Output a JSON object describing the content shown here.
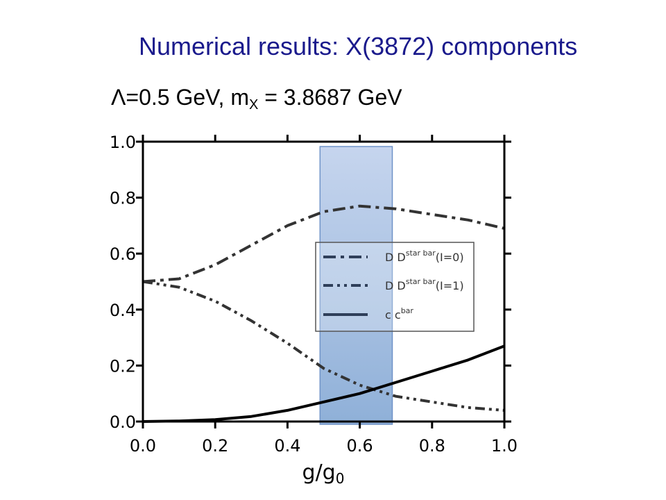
{
  "title": "Numerical results: X(3872) components",
  "subtitle": {
    "prefix": "Λ=0.5 GeV,  m",
    "sub": "X",
    "suffix": " = 3.8687 GeV"
  },
  "chart_data": {
    "type": "line",
    "xlabel": "g/g",
    "xlabel_sub": "0",
    "ylabel": "",
    "xlim": [
      0.0,
      1.0
    ],
    "ylim": [
      0.0,
      1.0
    ],
    "xticks": [
      "0.0",
      "0.2",
      "0.4",
      "0.6",
      "0.8",
      "1.0"
    ],
    "yticks": [
      "0.0",
      "0.2",
      "0.4",
      "0.6",
      "0.8",
      "1.0"
    ],
    "grid": false,
    "legend_position": "center-right",
    "highlight_band": {
      "x_range": [
        0.49,
        0.69
      ],
      "color": "#7fa6d6"
    },
    "series": [
      {
        "name": "D D",
        "name_sup": "star bar",
        "name_suffix": "(I=0)",
        "style": "dashdot",
        "color": "#333333",
        "x": [
          0.0,
          0.1,
          0.2,
          0.3,
          0.4,
          0.5,
          0.6,
          0.7,
          0.8,
          0.9,
          1.0
        ],
        "values": [
          0.5,
          0.51,
          0.56,
          0.63,
          0.7,
          0.75,
          0.77,
          0.76,
          0.74,
          0.72,
          0.69
        ]
      },
      {
        "name": "D D",
        "name_sup": "star bar",
        "name_suffix": "(I=1)",
        "style": "dashdotdot",
        "color": "#333333",
        "x": [
          0.0,
          0.1,
          0.2,
          0.3,
          0.4,
          0.5,
          0.6,
          0.7,
          0.8,
          0.9,
          1.0
        ],
        "values": [
          0.5,
          0.48,
          0.43,
          0.36,
          0.28,
          0.19,
          0.13,
          0.09,
          0.07,
          0.05,
          0.04
        ]
      },
      {
        "name": "c c",
        "name_sup": "bar",
        "name_suffix": "",
        "style": "solid",
        "color": "#000000",
        "x": [
          0.0,
          0.1,
          0.2,
          0.3,
          0.4,
          0.5,
          0.6,
          0.7,
          0.8,
          0.9,
          1.0
        ],
        "values": [
          0.0,
          0.002,
          0.007,
          0.018,
          0.04,
          0.07,
          0.1,
          0.14,
          0.18,
          0.22,
          0.27
        ]
      }
    ]
  }
}
